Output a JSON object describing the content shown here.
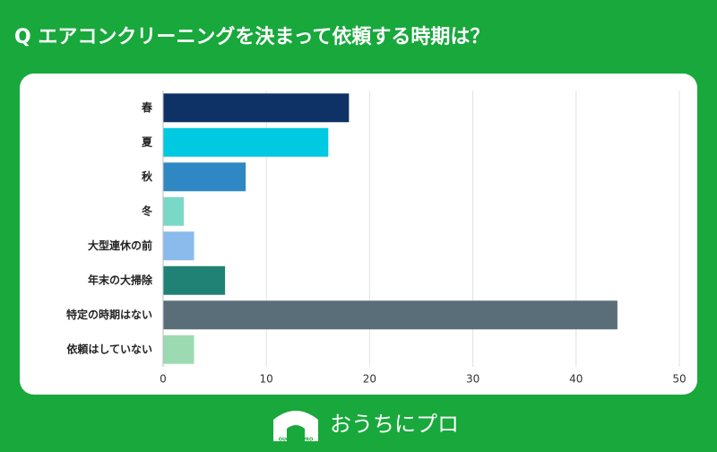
{
  "chart_data": {
    "type": "bar",
    "orientation": "horizontal",
    "title": "Q エアコンクリーニングを決まって依頼する時期は？",
    "categories": [
      "春",
      "夏",
      "秋",
      "冬",
      "大型連休の前",
      "年末の大掃除",
      "特定の時期はない",
      "依頼はしていない"
    ],
    "values": [
      18,
      16,
      8,
      2,
      3,
      6,
      44,
      3
    ],
    "colors": [
      "#0e3266",
      "#00c9e2",
      "#2f87c3",
      "#7ad8c6",
      "#8bbbec",
      "#1f8274",
      "#596e78",
      "#9cdbb2"
    ],
    "xlim": [
      0,
      50
    ],
    "xticks": [
      0,
      10,
      20,
      30,
      40,
      50
    ],
    "grid": true
  },
  "logo": {
    "text": "おうちにプロ",
    "subtext": "OUCHI ni PRO"
  }
}
